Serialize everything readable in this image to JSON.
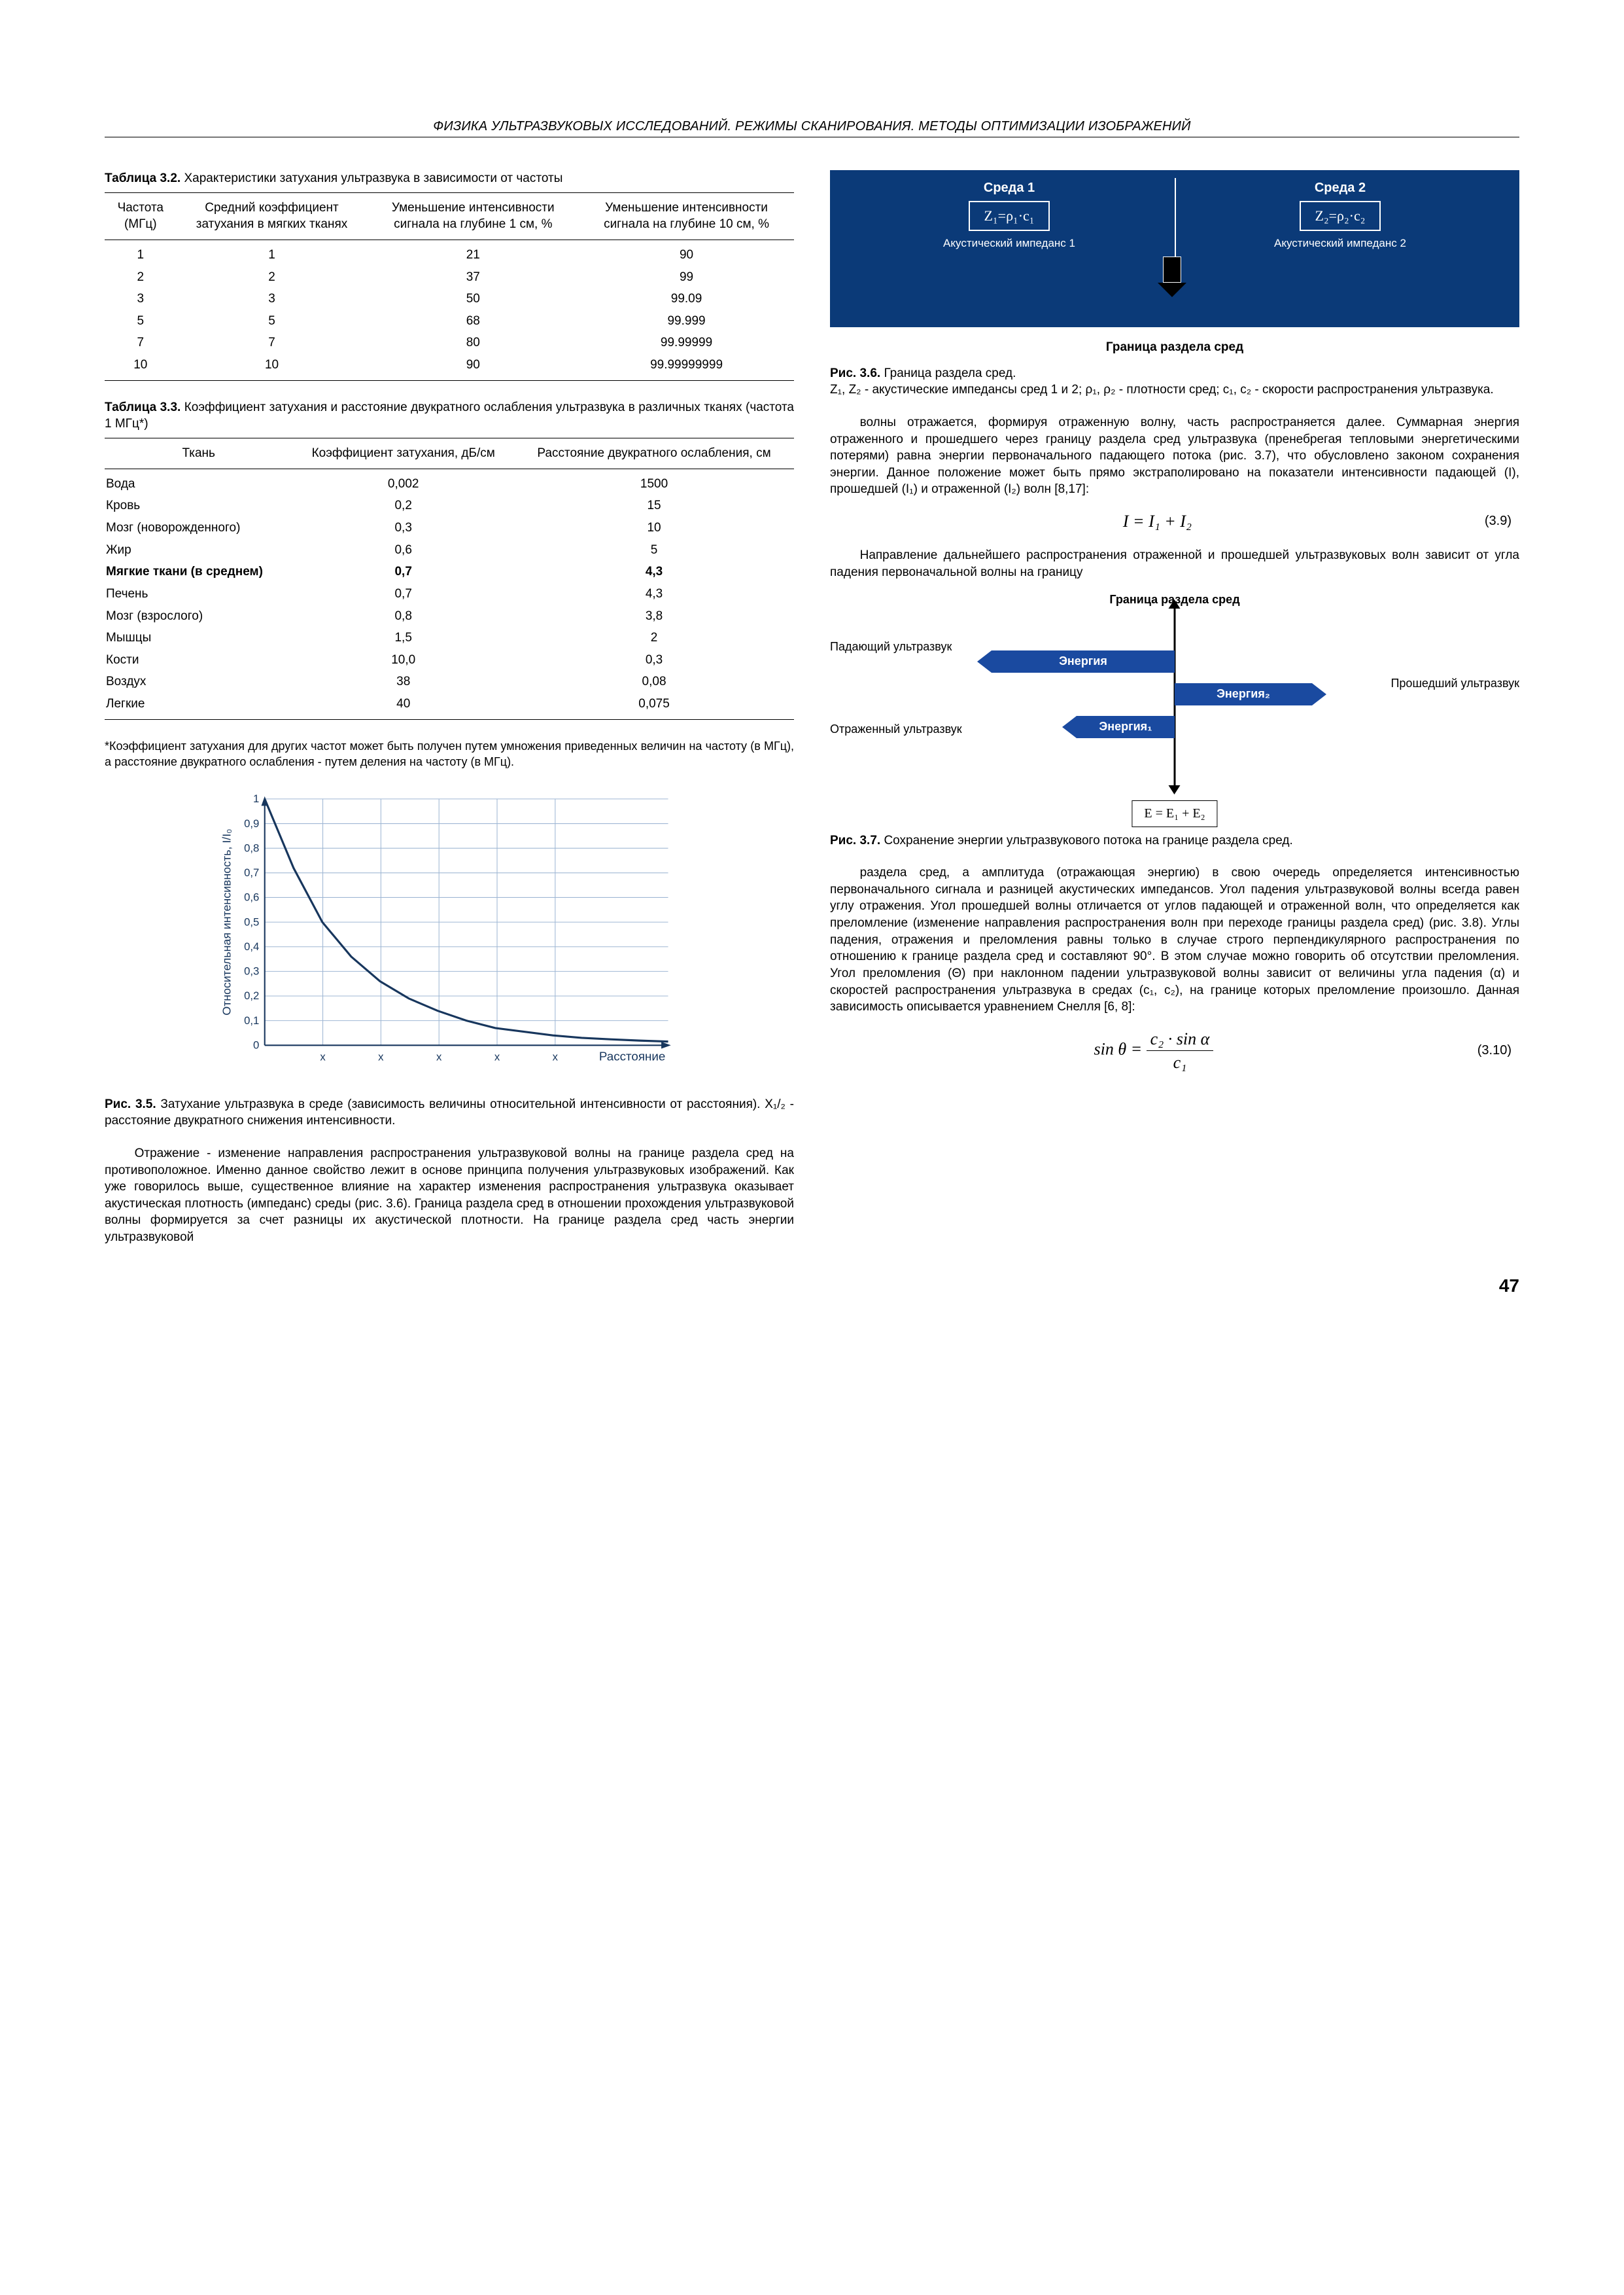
{
  "header": "ФИЗИКА УЛЬТРАЗВУКОВЫХ ИССЛЕДОВАНИЙ. РЕЖИМЫ СКАНИРОВАНИЯ. МЕТОДЫ ОПТИМИЗАЦИИ ИЗОБРАЖЕНИЙ",
  "page_number": "47",
  "table32": {
    "caption_bold": "Таблица 3.2.",
    "caption_rest": " Характеристики затухания ультразвука в зависимости от частоты",
    "headers": [
      "Частота (МГц)",
      "Средний коэффициент затухания в мягких тканях",
      "Уменьшение интенсивности сигнала на глубине 1 см, %",
      "Уменьшение интенсивности сигнала на глубине 10 см, %"
    ],
    "rows": [
      [
        "1",
        "1",
        "21",
        "90"
      ],
      [
        "2",
        "2",
        "37",
        "99"
      ],
      [
        "3",
        "3",
        "50",
        "99.09"
      ],
      [
        "5",
        "5",
        "68",
        "99.999"
      ],
      [
        "7",
        "7",
        "80",
        "99.99999"
      ],
      [
        "10",
        "10",
        "90",
        "99.99999999"
      ]
    ]
  },
  "table33": {
    "caption_bold": "Таблица 3.3.",
    "caption_rest": " Коэффициент затухания и расстояние двукратного ослабления ультразвука в различных тканях (частота 1 МГц*)",
    "headers": [
      "Ткань",
      "Коэффициент затухания, дБ/см",
      "Расстояние двукратного ослабления, см"
    ],
    "rows": [
      [
        "Вода",
        "0,002",
        "1500"
      ],
      [
        "Кровь",
        "0,2",
        "15"
      ],
      [
        "Мозг (новорожденного)",
        "0,3",
        "10"
      ],
      [
        "Жир",
        "0,6",
        "5"
      ],
      [
        "Мягкие ткани (в среднем)",
        "0,7",
        "4,3"
      ],
      [
        "Печень",
        "0,7",
        "4,3"
      ],
      [
        "Мозг (взрослого)",
        "0,8",
        "3,8"
      ],
      [
        "Мышцы",
        "1,5",
        "2"
      ],
      [
        "Кости",
        "10,0",
        "0,3"
      ],
      [
        "Воздух",
        "38",
        "0,08"
      ],
      [
        "Легкие",
        "40",
        "0,075"
      ]
    ],
    "bold_row_index": 4,
    "note": "*Коэффициент затухания для других частот может быть получен путем умножения приведенных величин на частоту (в МГц), а расстояние двукратного ослабления - путем деления на частоту (в МГц)."
  },
  "fig35": {
    "type": "line",
    "y_label_rot": "Относительная интенсивность, I/I₀",
    "x_label": "Расстояние",
    "x_ticks": [
      "x",
      "x",
      "x",
      "x",
      "x"
    ],
    "y_ticks": [
      "0",
      "0,1",
      "0,2",
      "0,3",
      "0,4",
      "0,5",
      "0,6",
      "0,7",
      "0,8",
      "0,9",
      "1"
    ],
    "line_color": "#17365d",
    "axis_color": "#17365d",
    "grid_color": "#9fb7d4",
    "background_color": "#ffffff",
    "data_y": [
      1.0,
      0.72,
      0.5,
      0.36,
      0.26,
      0.19,
      0.14,
      0.1,
      0.07,
      0.055,
      0.04,
      0.03,
      0.024,
      0.019,
      0.015
    ],
    "xlim": [
      0,
      14
    ],
    "ylim": [
      0,
      1
    ],
    "caption_bold": "Рис. 3.5.",
    "caption_rest": " Затухание ультразвука в среде (зависимость величины относительной интенсивности от расстояния). X₁/₂ - расстояние двукратного снижения интенсивности."
  },
  "para_left": "Отражение - изменение направления распространения ультразвуковой волны на границе раздела сред на противоположное. Именно данное свойство лежит в основе принципа получения ультразвуковых изображений. Как уже говорилось выше, существенное влияние на характер изменения распространения ультразвука оказывает акустическая плотность (импеданс) среды (рис. 3.6). Граница раздела сред в отношении прохождения ультразвуковой волны формируется за счет разницы их акустической плотности. На границе раздела сред часть энергии ультразвуковой",
  "fig36": {
    "bg_color": "#0b3a78",
    "medium1": "Среда 1",
    "medium2": "Среда 2",
    "z1": "Z₁=ρ₁·c₁",
    "z2": "Z₂=ρ₂·c₂",
    "imp1": "Акустический импеданс 1",
    "imp2": "Акустический импеданс 2",
    "boundary": "Граница раздела сред",
    "caption_bold": "Рис. 3.6.",
    "caption_rest": " Граница раздела сред.",
    "caption_line2": "Z₁, Z₂ - акустические импедансы сред 1 и 2; ρ₁, ρ₂ - плотности сред; c₁, c₂ - скорости распространения ультразвука."
  },
  "para_r1": "волны отражается, формируя отраженную волну, часть распространяется далее. Суммарная энергия отраженного и прошедшего через границу раздела сред ультразвука (пренебрегая тепловыми энергетическими потерями) равна энергии первоначального падающего потока (рис. 3.7), что обусловлено законом сохранения энергии. Данное положение может быть прямо экстраполировано на показатели интенсивности падающей (I), прошедшей (I₁) и отраженной (I₂) волн [8,17]:",
  "eq39": {
    "formula": "I = I₁ + I₂",
    "num": "(3.9)"
  },
  "para_r2": "Направление дальнейшего распространения отраженной и прошедшей ультразвуковых волн зависит от угла падения первоначальной волны на границу",
  "fig37": {
    "title": "Граница раздела сред",
    "lab_in": "Падающий ультразвук",
    "lab_out": "Прошедший ультразвук",
    "lab_refl": "Отраженный ультразвук",
    "energy": "Энергия",
    "energy1": "Энергия₁",
    "energy2": "Энергия₂",
    "eq": "E = E₁ + E₂",
    "bar_color": "#1a4aa0",
    "caption_bold": "Рис. 3.7.",
    "caption_rest": " Сохранение энергии ультразвукового потока на границе раздела сред."
  },
  "para_r3": "раздела сред, а амплитуда (отражающая энергию) в свою очередь определяется интенсивностью первоначального сигнала и разницей акустических импедансов. Угол падения ультразвуковой волны всегда равен углу отражения. Угол прошедшей волны отличается от углов падающей и отраженной волн, что определяется как преломление (изменение направления распространения волн при переходе границы раздела сред) (рис. 3.8). Углы падения, отражения и преломления равны только в случае строго перпендикулярного распространения по отношению к границе раздела сред и составляют 90°. В этом случае можно говорить об отсутствии преломления. Угол преломления (Θ) при наклонном падении ультразвуковой волны зависит от величины угла падения (α) и скоростей распространения ультразвука в средах (c₁, c₂), на границе которых преломление произошло. Данная зависимость описывается уравнением Снелля [6, 8]:",
  "eq310": {
    "formula_html": "sin θ = <span style='display:inline-block;vertical-align:middle'><span style='display:block;border-bottom:1.5px solid #000;padding:0 6px'>c₂ · sin α</span><span style='display:block;text-align:center'>c₁</span></span>",
    "num": "(3.10)"
  }
}
